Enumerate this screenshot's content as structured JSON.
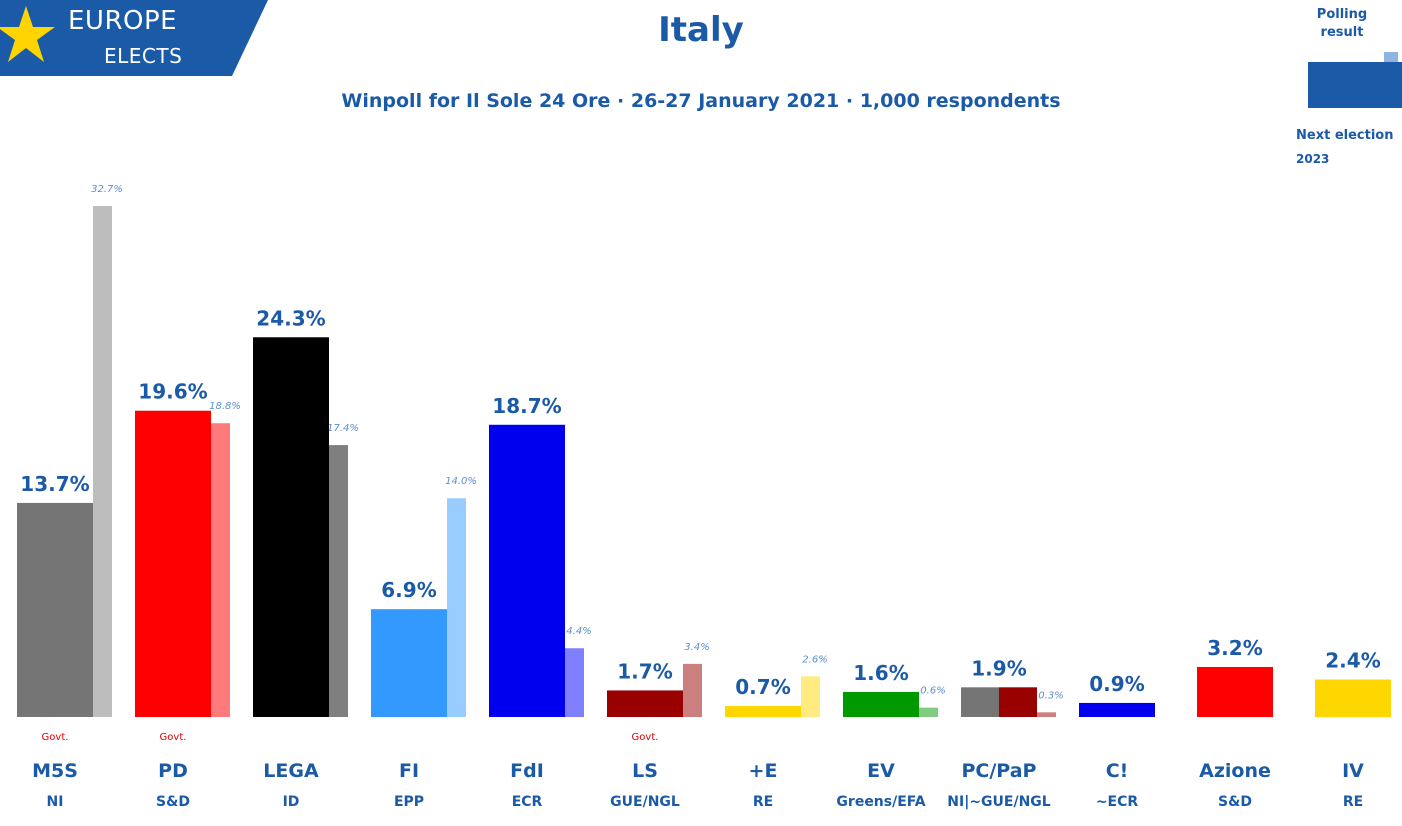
{
  "logo": {
    "line1": "EUROPE",
    "line2": "ELECTS"
  },
  "colors": {
    "accent": "#1b5aa6",
    "govt": "#e00000"
  },
  "legend": {
    "polling_label": "Polling result",
    "next_election_label": "Next election",
    "next_election_year": "2023"
  },
  "chart_data": {
    "type": "bar",
    "title": "Italy",
    "subtitle": "Winpoll for Il Sole 24 Ore · 26-27 January 2021 · 1,000 respondents",
    "ylim": [
      0,
      35
    ],
    "grid": false,
    "parties": [
      {
        "name": "M5S",
        "group": "NI",
        "value": 13.7,
        "value_label": "13.7%",
        "previous": 32.7,
        "previous_label": "32.7%",
        "color": "#757575",
        "previous_color": "#bdbdbd",
        "govt": "Govt."
      },
      {
        "name": "PD",
        "group": "S&D",
        "value": 19.6,
        "value_label": "19.6%",
        "previous": 18.8,
        "previous_label": "18.8%",
        "color": "#ff0000",
        "previous_color": "#ff7b7b",
        "govt": "Govt."
      },
      {
        "name": "LEGA",
        "group": "ID",
        "value": 24.3,
        "value_label": "24.3%",
        "previous": 17.4,
        "previous_label": "17.4%",
        "color": "#000000",
        "previous_color": "#7f7f7f",
        "govt": ""
      },
      {
        "name": "FI",
        "group": "EPP",
        "value": 6.9,
        "value_label": "6.9%",
        "previous": 14.0,
        "previous_label": "14.0%",
        "color": "#3399ff",
        "previous_color": "#99ccff",
        "govt": ""
      },
      {
        "name": "FdI",
        "group": "ECR",
        "value": 18.7,
        "value_label": "18.7%",
        "previous": 4.4,
        "previous_label": "4.4%",
        "color": "#0000ee",
        "previous_color": "#7f7fff",
        "govt": ""
      },
      {
        "name": "LS",
        "group": "GUE/NGL",
        "value": 1.7,
        "value_label": "1.7%",
        "previous": 3.4,
        "previous_label": "3.4%",
        "color": "#990000",
        "previous_color": "#cc7f7f",
        "govt": "Govt."
      },
      {
        "name": "+E",
        "group": "RE",
        "value": 0.7,
        "value_label": "0.7%",
        "previous": 2.6,
        "previous_label": "2.6%",
        "color": "#ffd700",
        "previous_color": "#ffeb80",
        "govt": ""
      },
      {
        "name": "EV",
        "group": "Greens/EFA",
        "value": 1.6,
        "value_label": "1.6%",
        "previous": 0.6,
        "previous_label": "0.6%",
        "color": "#009900",
        "previous_color": "#80cc80",
        "govt": ""
      },
      {
        "name": "PC/PaP",
        "group": "NI|~GUE/NGL",
        "value": 1.9,
        "value_label": "1.9%",
        "previous": 0.3,
        "previous_label": "0.3%",
        "color": "#990000",
        "color2": "#757575",
        "previous_color": "#cc7f7f",
        "govt": ""
      },
      {
        "name": "C!",
        "group": "~ECR",
        "value": 0.9,
        "value_label": "0.9%",
        "previous": null,
        "previous_label": "",
        "color": "#0000ee",
        "previous_color": "",
        "govt": ""
      },
      {
        "name": "Azione",
        "group": "S&D",
        "value": 3.2,
        "value_label": "3.2%",
        "previous": null,
        "previous_label": "",
        "color": "#ff0000",
        "previous_color": "",
        "govt": ""
      },
      {
        "name": "IV",
        "group": "RE",
        "value": 2.4,
        "value_label": "2.4%",
        "previous": null,
        "previous_label": "",
        "color": "#ffd700",
        "previous_color": "",
        "govt": ""
      }
    ]
  }
}
